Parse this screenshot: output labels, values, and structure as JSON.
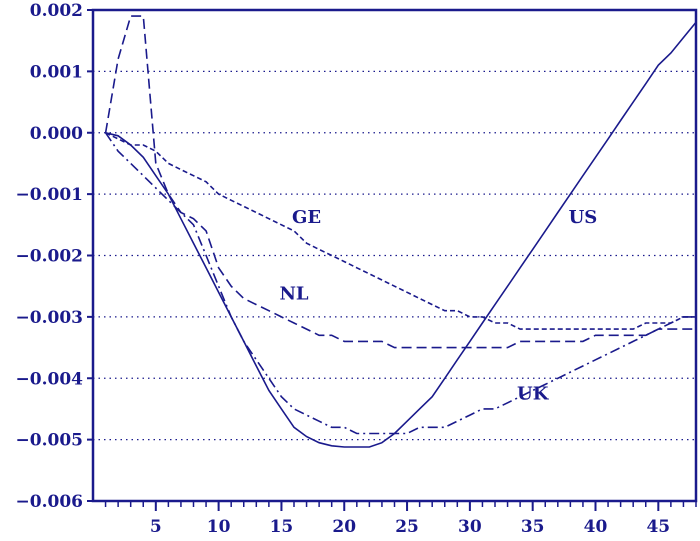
{
  "chart_data": {
    "type": "line",
    "title": "",
    "xlabel": "",
    "ylabel": "",
    "xlim": [
      0,
      48
    ],
    "ylim": [
      -0.006,
      0.002
    ],
    "x_ticks": [
      5,
      10,
      15,
      20,
      25,
      30,
      35,
      40,
      45
    ],
    "x_tick_labels": [
      "5",
      "10",
      "15",
      "20",
      "25",
      "30",
      "35",
      "40",
      "45"
    ],
    "y_ticks": [
      0.002,
      0.001,
      0.0,
      -0.001,
      -0.002,
      -0.003,
      -0.004,
      -0.005,
      -0.006
    ],
    "y_tick_labels": [
      "0.002",
      "0.001",
      "0.000",
      "−0.001",
      "−0.002",
      "−0.003",
      "−0.004",
      "−0.005",
      "−0.006"
    ],
    "grid": "horizontal dotted",
    "color": "#1a1a8c",
    "series": [
      {
        "name": "US",
        "style": "solid",
        "label_at": [
          39,
          -0.00147
        ],
        "x": [
          1,
          2,
          3,
          4,
          5,
          6,
          7,
          8,
          9,
          10,
          11,
          12,
          13,
          14,
          15,
          16,
          17,
          18,
          19,
          20,
          21,
          22,
          23,
          24,
          25,
          26,
          27,
          28,
          29,
          30,
          31,
          32,
          33,
          34,
          35,
          36,
          37,
          38,
          39,
          40,
          41,
          42,
          43,
          44,
          45,
          46,
          47,
          48
        ],
        "y": [
          0.0,
          -5e-05,
          -0.0002,
          -0.0004,
          -0.0007,
          -0.001,
          -0.0014,
          -0.0018,
          -0.0022,
          -0.0026,
          -0.003,
          -0.0034,
          -0.0038,
          -0.0042,
          -0.0045,
          -0.0048,
          -0.00495,
          -0.00505,
          -0.0051,
          -0.00512,
          -0.00512,
          -0.00512,
          -0.00505,
          -0.0049,
          -0.0047,
          -0.0045,
          -0.0043,
          -0.004,
          -0.0037,
          -0.0034,
          -0.0031,
          -0.0028,
          -0.0025,
          -0.0022,
          -0.0019,
          -0.0016,
          -0.0013,
          -0.001,
          -0.0007,
          -0.0004,
          -0.0001,
          0.0002,
          0.0005,
          0.0008,
          0.0011,
          0.0013,
          0.00155,
          0.0018
        ]
      },
      {
        "name": "GE",
        "style": "short-dash",
        "label_at": [
          17,
          -0.00147
        ],
        "x": [
          1,
          2,
          3,
          4,
          5,
          6,
          7,
          8,
          9,
          10,
          11,
          12,
          13,
          14,
          15,
          16,
          17,
          18,
          19,
          20,
          21,
          22,
          23,
          24,
          25,
          26,
          27,
          28,
          29,
          30,
          31,
          32,
          33,
          34,
          35,
          36,
          37,
          38,
          39,
          40,
          41,
          42,
          43,
          44,
          45,
          46,
          47,
          48
        ],
        "y": [
          0.0,
          -0.0001,
          -0.0002,
          -0.0002,
          -0.0003,
          -0.0005,
          -0.0006,
          -0.0007,
          -0.0008,
          -0.001,
          -0.0011,
          -0.0012,
          -0.0013,
          -0.0014,
          -0.0015,
          -0.0016,
          -0.0018,
          -0.0019,
          -0.002,
          -0.0021,
          -0.0022,
          -0.0023,
          -0.0024,
          -0.0025,
          -0.0026,
          -0.0027,
          -0.0028,
          -0.0029,
          -0.0029,
          -0.003,
          -0.003,
          -0.0031,
          -0.0031,
          -0.0032,
          -0.0032,
          -0.0032,
          -0.0032,
          -0.0032,
          -0.0032,
          -0.0032,
          -0.0032,
          -0.0032,
          -0.0032,
          -0.0031,
          -0.0031,
          -0.0031,
          -0.003,
          -0.003
        ]
      },
      {
        "name": "NL",
        "style": "long-dash",
        "label_at": [
          16,
          -0.00272
        ],
        "x": [
          1,
          2,
          3,
          4,
          5,
          6,
          7,
          8,
          9,
          10,
          11,
          12,
          13,
          14,
          15,
          16,
          17,
          18,
          19,
          20,
          21,
          22,
          23,
          24,
          25,
          26,
          27,
          28,
          29,
          30,
          31,
          32,
          33,
          34,
          35,
          36,
          37,
          38,
          39,
          40,
          41,
          42,
          43,
          44,
          45,
          46,
          47,
          48
        ],
        "y": [
          0.0,
          0.0012,
          0.0019,
          0.0019,
          -0.0005,
          -0.001,
          -0.0013,
          -0.0014,
          -0.0016,
          -0.0022,
          -0.0025,
          -0.0027,
          -0.0028,
          -0.0029,
          -0.003,
          -0.0031,
          -0.0032,
          -0.0033,
          -0.0033,
          -0.0034,
          -0.0034,
          -0.0034,
          -0.0034,
          -0.0035,
          -0.0035,
          -0.0035,
          -0.0035,
          -0.0035,
          -0.0035,
          -0.0035,
          -0.0035,
          -0.0035,
          -0.0035,
          -0.0034,
          -0.0034,
          -0.0034,
          -0.0034,
          -0.0034,
          -0.0034,
          -0.0033,
          -0.0033,
          -0.0033,
          -0.0033,
          -0.0033,
          -0.0032,
          -0.0032,
          -0.0032,
          -0.0032
        ]
      },
      {
        "name": "UK",
        "style": "dash-dot",
        "label_at": [
          35,
          -0.00435
        ],
        "x": [
          1,
          2,
          3,
          4,
          5,
          6,
          7,
          8,
          9,
          10,
          11,
          12,
          13,
          14,
          15,
          16,
          17,
          18,
          19,
          20,
          21,
          22,
          23,
          24,
          25,
          26,
          27,
          28,
          29,
          30,
          31,
          32,
          33,
          34,
          35,
          36,
          37,
          38,
          39,
          40,
          41,
          42,
          43,
          44,
          45,
          46,
          47,
          48
        ],
        "y": [
          0.0,
          -0.0003,
          -0.0005,
          -0.0007,
          -0.0009,
          -0.0011,
          -0.0013,
          -0.0015,
          -0.002,
          -0.0025,
          -0.003,
          -0.0034,
          -0.0037,
          -0.004,
          -0.0043,
          -0.0045,
          -0.0046,
          -0.0047,
          -0.0048,
          -0.0048,
          -0.0049,
          -0.0049,
          -0.0049,
          -0.0049,
          -0.0049,
          -0.0048,
          -0.0048,
          -0.0048,
          -0.0047,
          -0.0046,
          -0.0045,
          -0.0045,
          -0.0044,
          -0.0043,
          -0.0042,
          -0.0041,
          -0.004,
          -0.0039,
          -0.0038,
          -0.0037,
          -0.0036,
          -0.0035,
          -0.0034,
          -0.0033,
          -0.0032,
          -0.0031,
          -0.003,
          -0.003
        ]
      }
    ]
  }
}
